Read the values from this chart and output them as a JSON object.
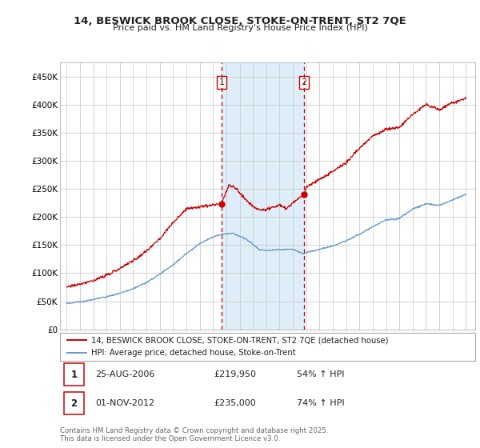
{
  "title": "14, BESWICK BROOK CLOSE, STOKE-ON-TRENT, ST2 7QE",
  "subtitle": "Price paid vs. HM Land Registry's House Price Index (HPI)",
  "legend_line1": "14, BESWICK BROOK CLOSE, STOKE-ON-TRENT, ST2 7QE (detached house)",
  "legend_line2": "HPI: Average price, detached house, Stoke-on-Trent",
  "transaction1_date": "25-AUG-2006",
  "transaction1_price": "£219,950",
  "transaction1_hpi": "54% ↑ HPI",
  "transaction2_date": "01-NOV-2012",
  "transaction2_price": "£235,000",
  "transaction2_hpi": "74% ↑ HPI",
  "footer": "Contains HM Land Registry data © Crown copyright and database right 2025.\nThis data is licensed under the Open Government Licence v3.0.",
  "shaded_region_color": "#ddeef8",
  "red_line_color": "#cc0000",
  "blue_line_color": "#6699cc",
  "dashed_line_color": "#cc0000",
  "background_color": "#ffffff",
  "grid_color": "#cccccc",
  "ylim": [
    0,
    475000
  ],
  "yticks": [
    0,
    50000,
    100000,
    150000,
    200000,
    250000,
    300000,
    350000,
    400000,
    450000
  ],
  "ytick_labels": [
    "£0",
    "£50K",
    "£100K",
    "£150K",
    "£200K",
    "£250K",
    "£300K",
    "£350K",
    "£400K",
    "£450K"
  ],
  "sale1_t": 2006.65,
  "sale2_t": 2012.84,
  "sale1_price": 219950,
  "sale2_price": 235000
}
